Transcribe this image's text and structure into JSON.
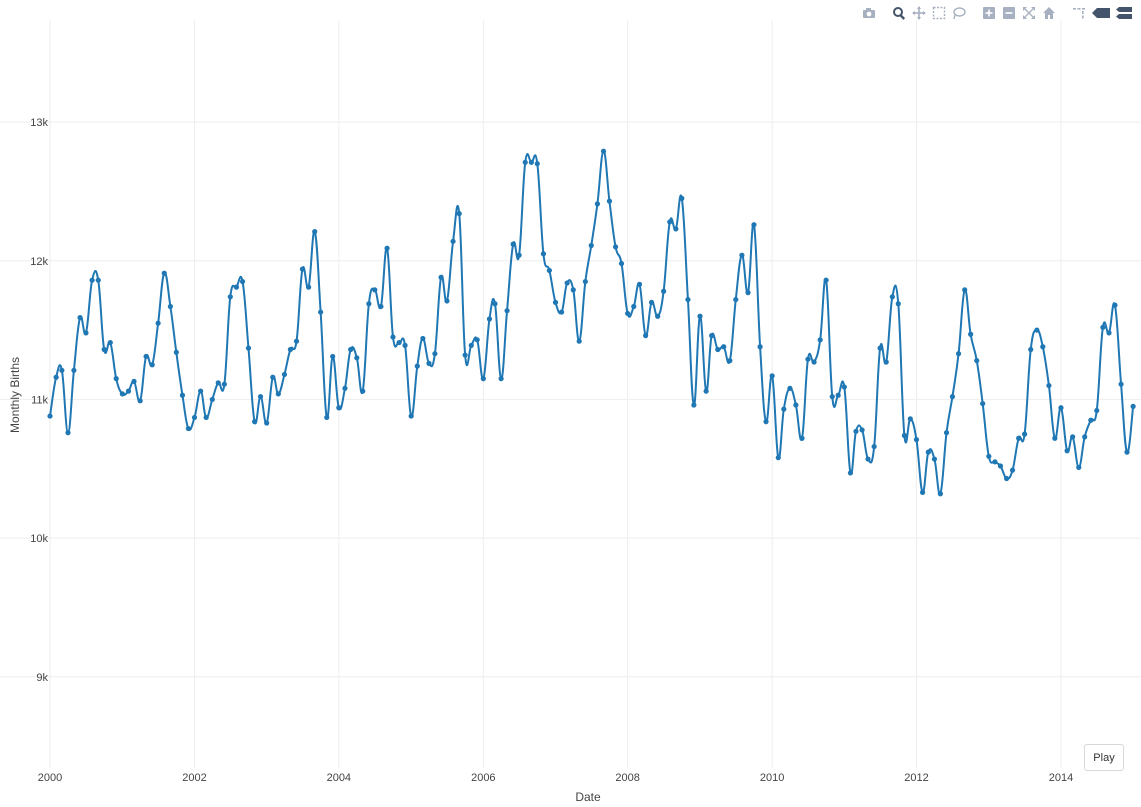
{
  "chart_data": {
    "type": "line",
    "title": "",
    "xlabel": "Date",
    "ylabel": "Monthly Births",
    "xlim": [
      "2000-01-01",
      "2014-12-01"
    ],
    "ylim": [
      8400,
      13700
    ],
    "grid": true,
    "x_ticks": [
      "2000",
      "2002",
      "2004",
      "2006",
      "2008",
      "2010",
      "2012",
      "2014"
    ],
    "y_ticks": [
      "9k",
      "10k",
      "11k",
      "12k",
      "13k"
    ],
    "x_tick_dates": [
      "2000-01-01",
      "2002-01-01",
      "2004-01-01",
      "2006-01-01",
      "2008-01-01",
      "2010-01-01",
      "2012-01-01",
      "2014-01-01"
    ],
    "y_tick_values": [
      9000,
      10000,
      11000,
      12000,
      13000
    ],
    "color": "#1f77b4",
    "series": [
      {
        "start": "2000-01",
        "frequency": "monthly",
        "values": [
          10880,
          11160,
          11210,
          10760,
          11210,
          11590,
          11480,
          11860,
          11860,
          11360,
          11410,
          11150,
          11040,
          11060,
          11130,
          10990,
          11310,
          11250,
          11550,
          11910,
          11670,
          11340,
          11030,
          10790,
          10870,
          11060,
          10870,
          11000,
          11120,
          11110,
          11740,
          11810,
          11850,
          11370,
          10840,
          11020,
          10830,
          11160,
          11040,
          11180,
          11360,
          11420,
          11940,
          11810,
          12210,
          11630,
          10870,
          11310,
          10940,
          11080,
          11360,
          11300,
          11060,
          11690,
          11790,
          11670,
          12090,
          11450,
          11410,
          11390,
          10880,
          11240,
          11440,
          11260,
          11330,
          11880,
          11710,
          12140,
          12340,
          11320,
          11390,
          11430,
          11150,
          11580,
          11690,
          11150,
          11640,
          12120,
          12040,
          12710,
          12710,
          12700,
          12050,
          11930,
          11700,
          11630,
          11840,
          11790,
          11420,
          11850,
          12110,
          12410,
          12790,
          12430,
          12100,
          11980,
          11620,
          11670,
          11830,
          11460,
          11700,
          11600,
          11780,
          12280,
          12230,
          12450,
          11720,
          10960,
          11600,
          11060,
          11460,
          11360,
          11380,
          11280,
          11720,
          12040,
          11770,
          12260,
          11380,
          10840,
          11170,
          10580,
          10930,
          11080,
          10960,
          10720,
          11290,
          11270,
          11430,
          11860,
          11020,
          11030,
          11090,
          10470,
          10770,
          10780,
          10570,
          10660,
          11370,
          11270,
          11740,
          11690,
          10740,
          10860,
          10710,
          10330,
          10620,
          10570,
          10320,
          10760,
          11020,
          11330,
          11790,
          11470,
          11280,
          10970,
          10590,
          10550,
          10520,
          10430,
          10490,
          10720,
          10750,
          11360,
          11500,
          11380,
          11100,
          10720,
          10940,
          10630,
          10730,
          10510,
          10730,
          10850,
          10920,
          11520,
          11480,
          11680,
          11110,
          10620,
          10950
        ]
      }
    ]
  },
  "modebar": {
    "icons": [
      "camera-icon",
      "zoom-icon",
      "pan-icon",
      "box-select-icon",
      "lasso-select-icon",
      "zoom-in-icon",
      "zoom-out-icon",
      "autoscale-icon",
      "reset-axes-icon",
      "spike-lines-icon",
      "hover-closest-icon",
      "hover-compare-icon"
    ]
  },
  "controls": {
    "play_label": "Play"
  }
}
